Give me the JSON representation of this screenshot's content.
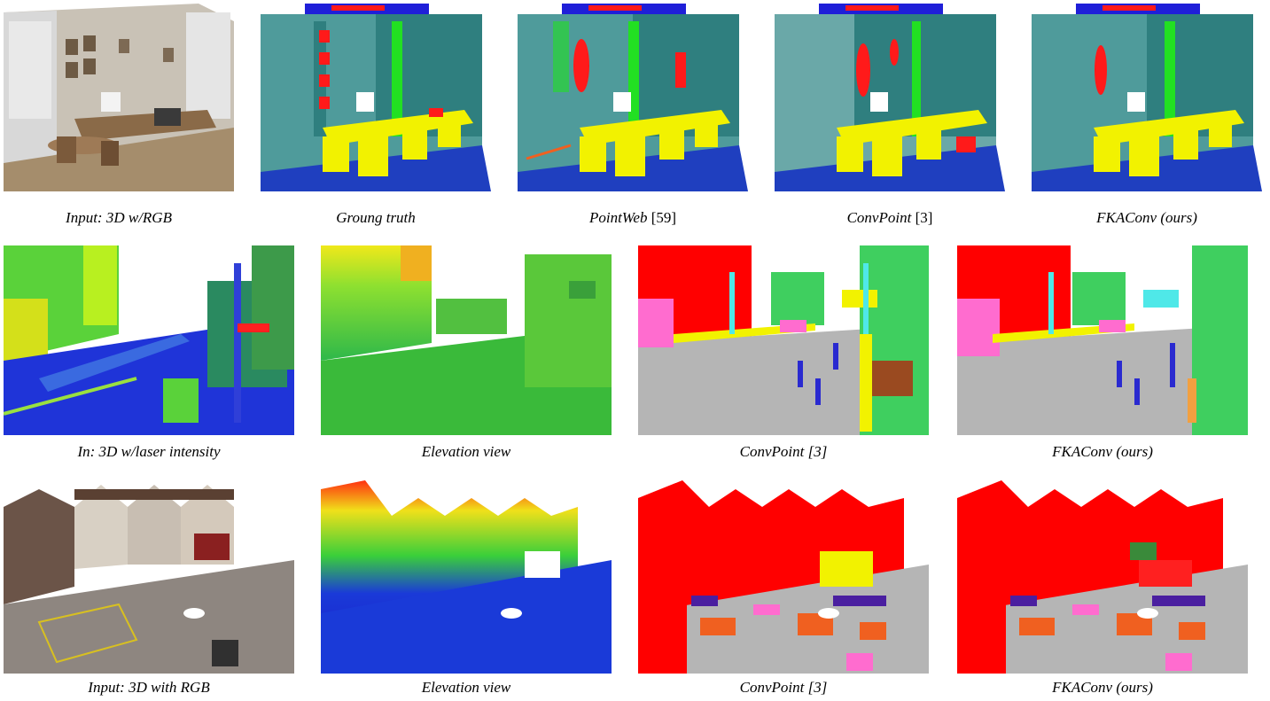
{
  "figure": {
    "rows": [
      {
        "panels": [
          {
            "caption": "Input: 3D w/RGB",
            "ref": ""
          },
          {
            "caption": "Groung truth",
            "ref": ""
          },
          {
            "caption": "PointWeb",
            "ref": "[59]"
          },
          {
            "caption": "ConvPoint",
            "ref": "[3]"
          },
          {
            "caption": "FKAConv (ours)",
            "ref": ""
          }
        ]
      },
      {
        "panels": [
          {
            "caption": "In: 3D w/laser intensity",
            "ref": ""
          },
          {
            "caption": "Elevation view",
            "ref": ""
          },
          {
            "caption": "ConvPoint [3]",
            "ref": ""
          },
          {
            "caption": "FKAConv (ours)",
            "ref": ""
          }
        ]
      },
      {
        "panels": [
          {
            "caption": "Input: 3D with RGB",
            "ref": ""
          },
          {
            "caption": "Elevation view",
            "ref": ""
          },
          {
            "caption": "ConvPoint [3]",
            "ref": ""
          },
          {
            "caption": "FKAConv (ours)",
            "ref": ""
          }
        ]
      }
    ],
    "palette": {
      "wall": "#4f9b9b",
      "wall_dark": "#2f7f7f",
      "floor": "#1f3fbf",
      "chair": "#f2f200",
      "board": "#ff1a1a",
      "column": "#22e022",
      "ceiling": "#1f1fd8",
      "building": "#ff0000",
      "road": "#b5b5b5",
      "vegetation": "#3fcf5f",
      "car": "#ff6ccf",
      "pole": "#2a2ad0",
      "sign": "#4fe8e8",
      "orange": "#f06020",
      "purple": "#4a1fa0"
    }
  }
}
